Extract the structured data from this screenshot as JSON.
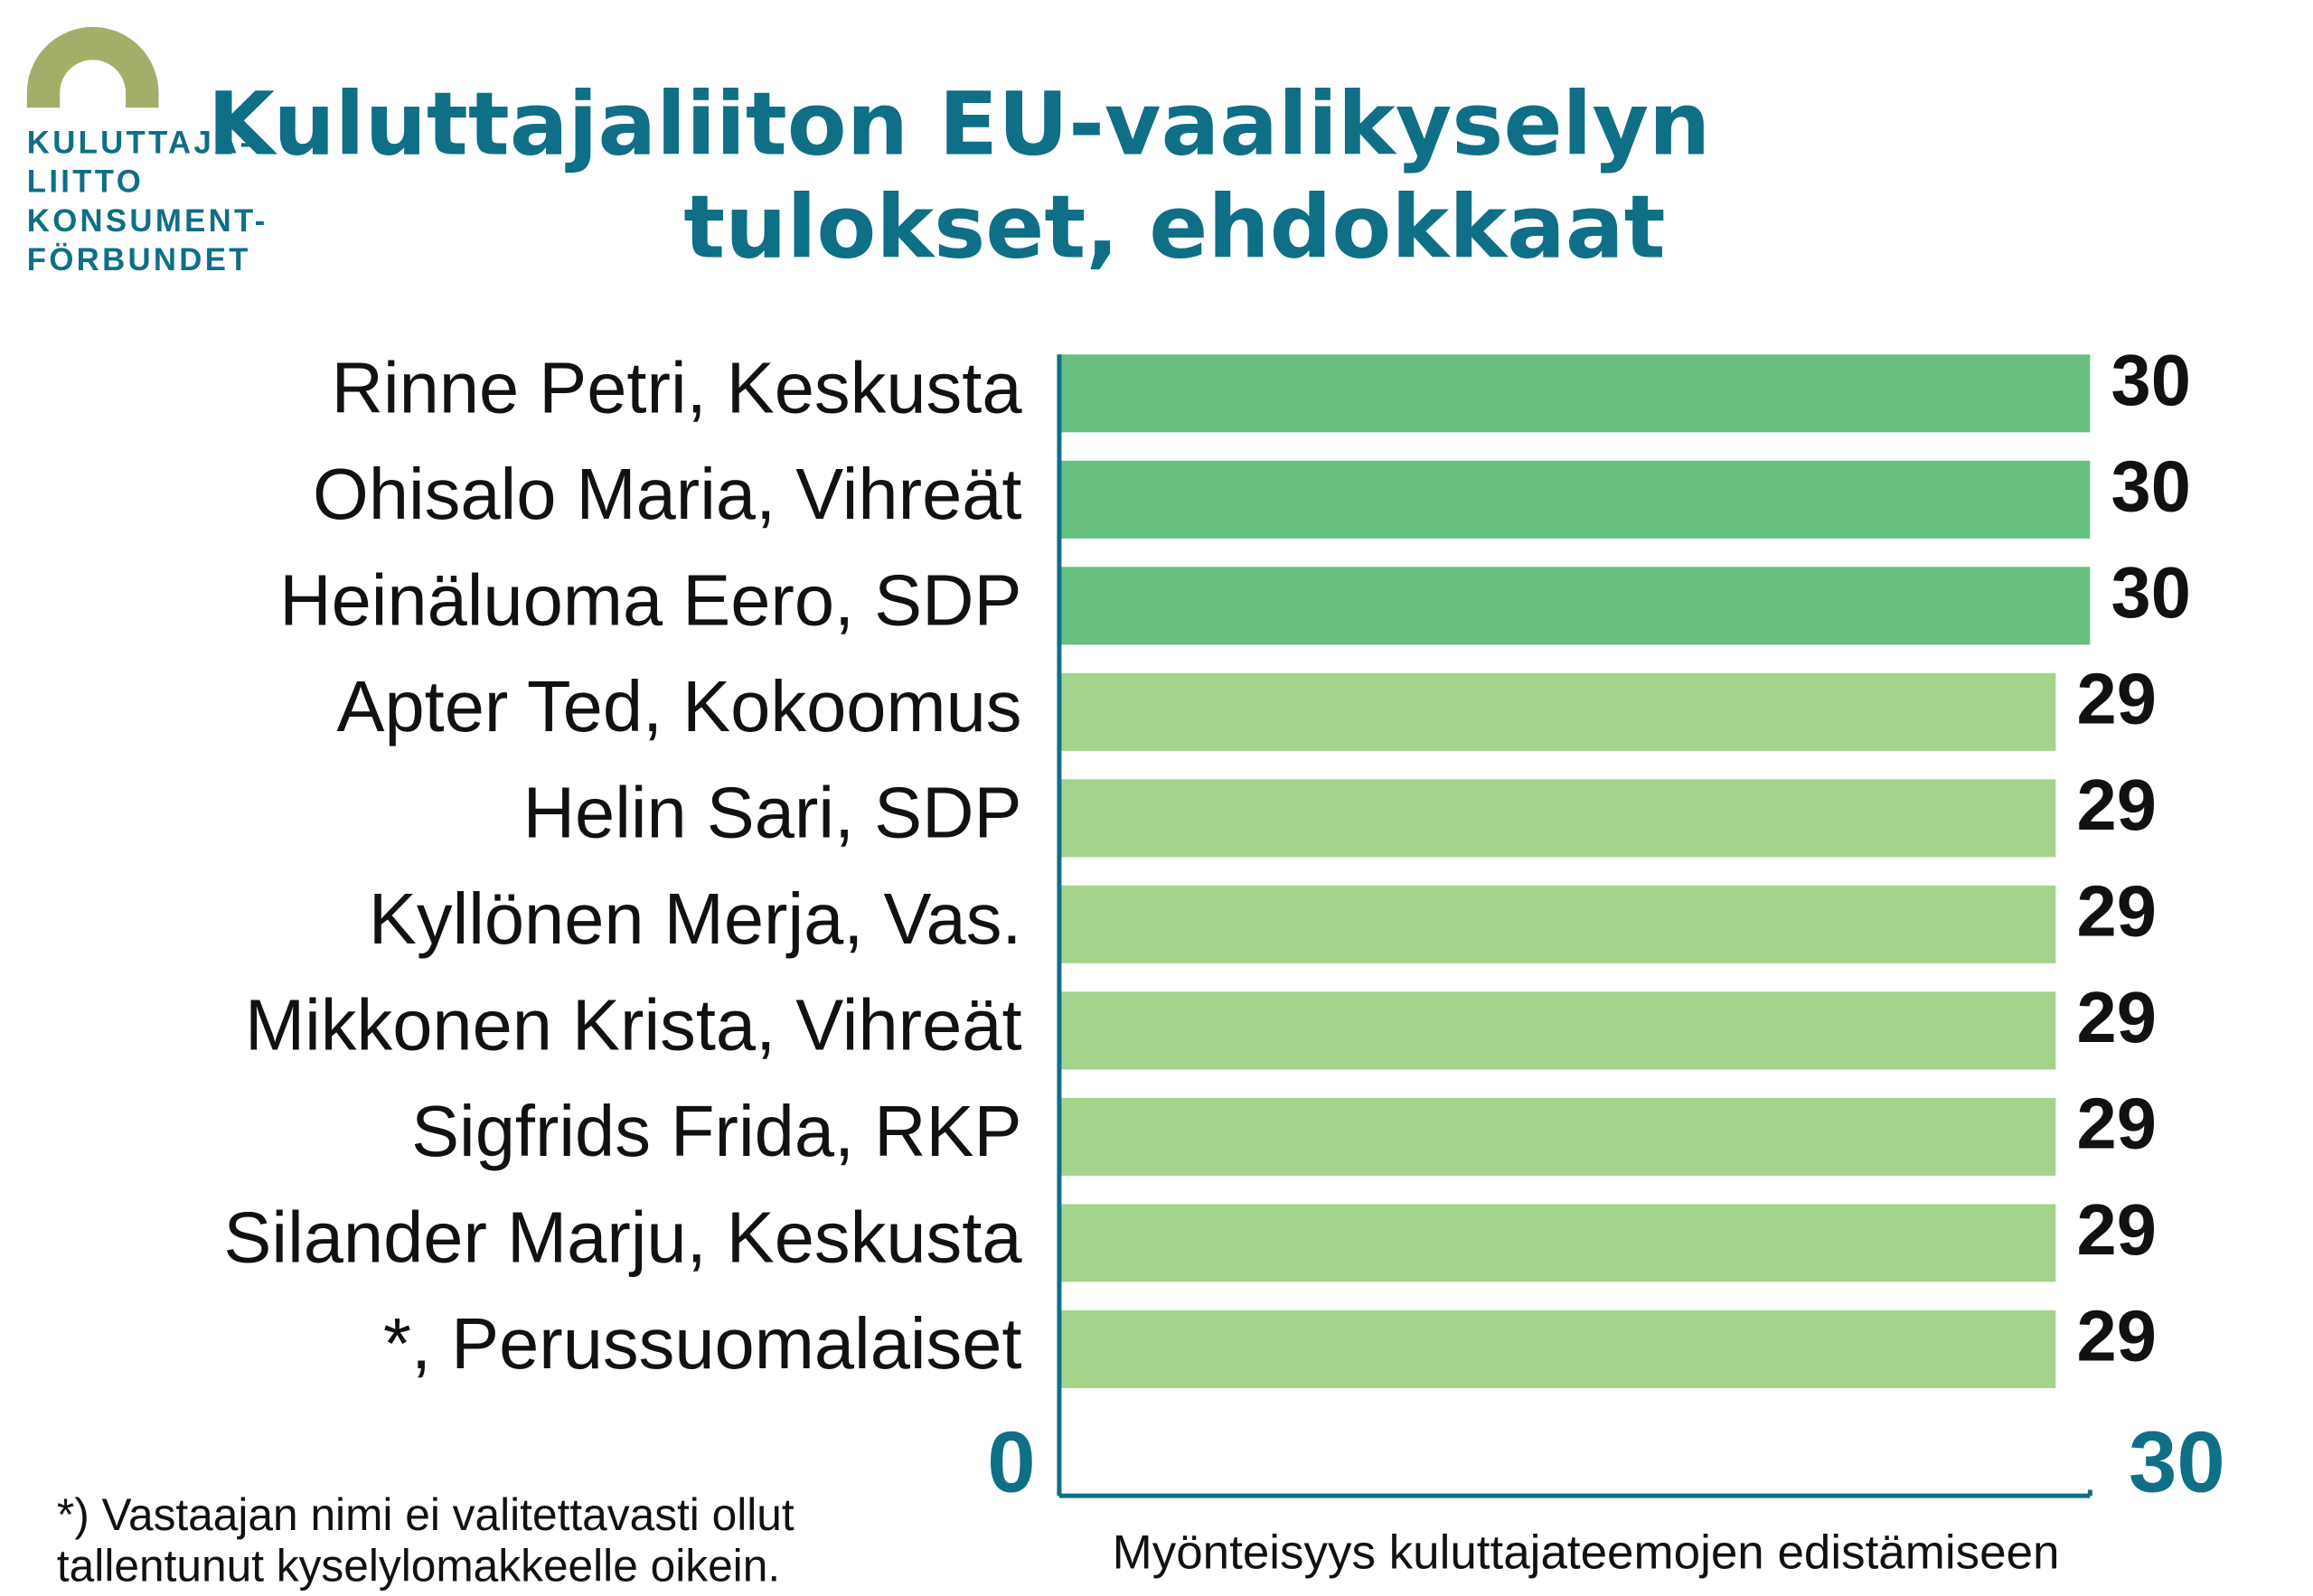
{
  "logo": [
    "KULUTTAJA-",
    "LIITTO",
    "KONSUMENT-",
    "FÖRBUNDET"
  ],
  "chart_data": {
    "type": "hbar",
    "title": [
      "Kuluttajaliiton EU-vaalikyselyn",
      "tulokset, ehdokkaat"
    ],
    "categories": [
      "Rinne Petri, Keskusta",
      "Ohisalo Maria, Vihreät",
      "Heinäluoma Eero, SDP",
      "Apter Ted, Kokoomus",
      "Helin Sari, SDP",
      "Kyllönen Merja, Vas.",
      "Mikkonen Krista, Vihreät",
      "Sigfrids Frida, RKP",
      "Silander Marju, Keskusta",
      "*, Perussuomalaiset"
    ],
    "values": [
      30,
      30,
      30,
      29,
      29,
      29,
      29,
      29,
      29,
      29
    ],
    "colors": [
      "#66bf7f",
      "#66bf7f",
      "#66bf7f",
      "#a4d38c",
      "#a4d38c",
      "#a4d38c",
      "#a4d38c",
      "#a4d38c",
      "#a4d38c",
      "#a4d38c"
    ],
    "xlim": [
      0,
      30
    ],
    "xticks": [
      0,
      30
    ],
    "xlabel": "Myönteisyys kuluttajateemojen edistämiseen",
    "footnote": [
      "*) Vastaajan nimi ei valitettavasti ollut",
      "tallentunut kyselylomakkeelle oikein."
    ]
  }
}
